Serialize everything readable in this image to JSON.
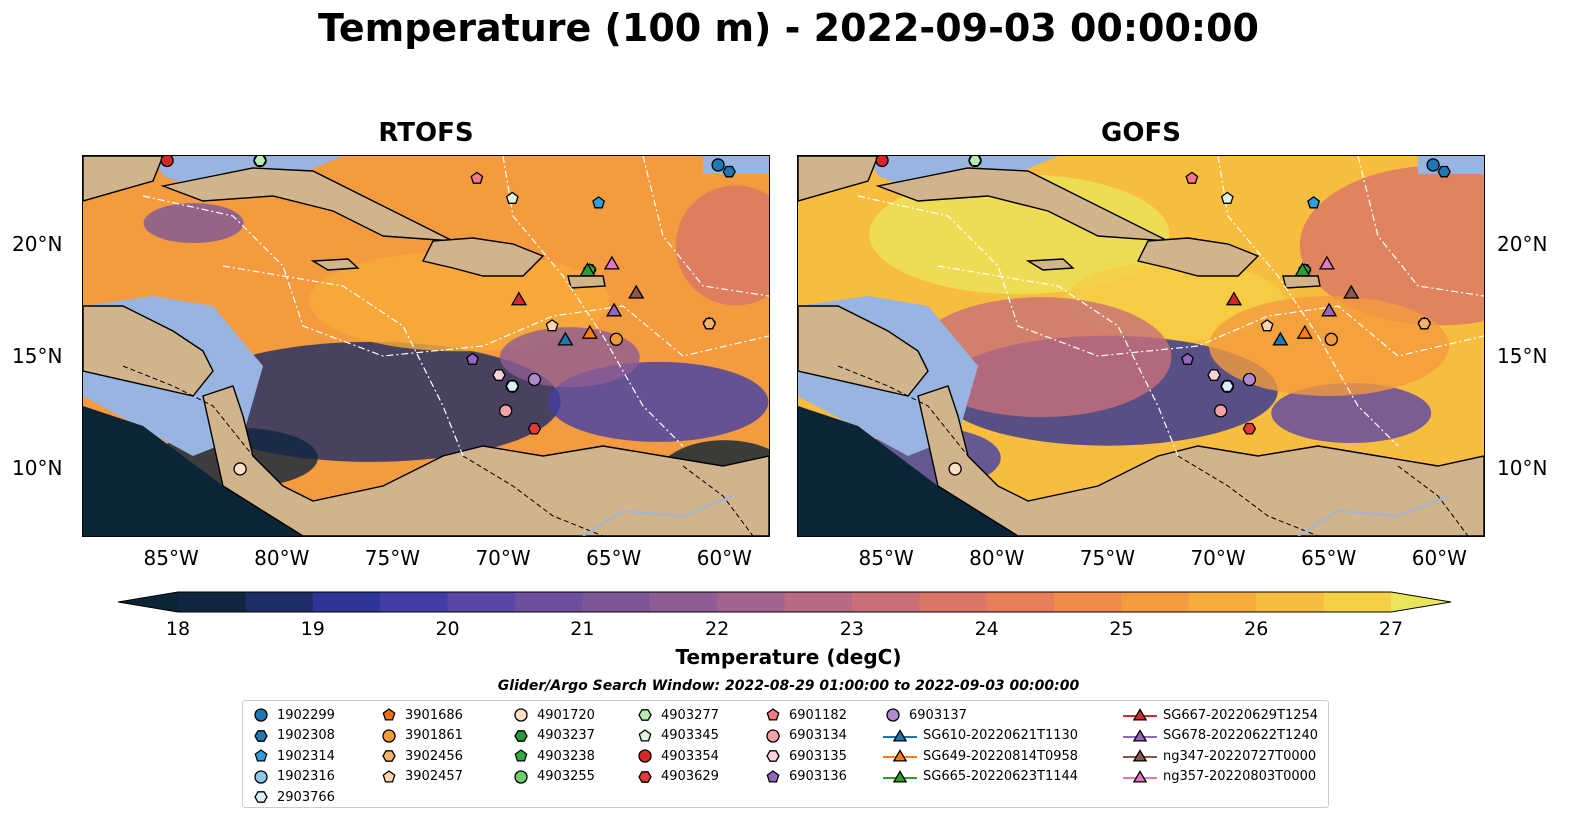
{
  "title": "Temperature (100 m) - 2022-09-03 00:00:00",
  "panels": [
    {
      "title": "RTOFS"
    },
    {
      "title": "GOFS"
    }
  ],
  "colorbar": {
    "label": "Temperature (degC)",
    "ticks": [
      "18",
      "19",
      "20",
      "21",
      "22",
      "23",
      "24",
      "25",
      "26",
      "27"
    ],
    "colors": [
      "#0b2536",
      "#10263f",
      "#1d2c66",
      "#2f3597",
      "#423ea8",
      "#5a46a6",
      "#6c4f9f",
      "#7d5698",
      "#8f5d93",
      "#a2638c",
      "#b66a84",
      "#c86f78",
      "#da7568",
      "#e87e57",
      "#f18c48",
      "#f49b3f",
      "#f6ab3b",
      "#f7bd3e",
      "#f4d045",
      "#ebe55a"
    ]
  },
  "search_window": "Glider/Argo Search Window: 2022-08-29 01:00:00 to 2022-09-03 00:00:00",
  "axes": {
    "lon_ticks": [
      "85°W",
      "80°W",
      "75°W",
      "70°W",
      "65°W",
      "60°W"
    ],
    "lat_ticks": [
      "20°N",
      "15°N",
      "10°N"
    ]
  },
  "chart_data": {
    "type": "heatmap",
    "variable": "Temperature (100 m)",
    "units": "degC",
    "clim": [
      18,
      27
    ],
    "extent": {
      "lon": [
        -89,
        -58
      ],
      "lat": [
        7,
        24
      ]
    },
    "colors": {
      "land": "#d2b48c",
      "shallow": "#98b4e0",
      "deep_cold": "#0b2536"
    },
    "platforms": [
      {
        "name": "1902299",
        "marker": "circle",
        "color": "#1f77b4",
        "lon": -60.3,
        "lat": 23.6
      },
      {
        "name": "1902308",
        "marker": "hexagon",
        "color": "#1f77b4",
        "lon": -59.8,
        "lat": 23.3
      },
      {
        "name": "1902314",
        "marker": "pentagon",
        "color": "#2ca0df",
        "lon": -65.7,
        "lat": 21.9
      },
      {
        "name": "1902316",
        "marker": "circle",
        "color": "#8ec6ea",
        "lon": -69.6,
        "lat": 13.7
      },
      {
        "name": "2903766",
        "marker": "hexagon",
        "color": "#d9effa",
        "lon": -69.6,
        "lat": 13.7
      },
      {
        "name": "3901686",
        "marker": "pentagon",
        "color": "#ec7014",
        "lon": -60.7,
        "lat": 16.5
      },
      {
        "name": "3901861",
        "marker": "circle",
        "color": "#f29a3a",
        "lon": -64.9,
        "lat": 15.8
      },
      {
        "name": "3902456",
        "marker": "hexagon",
        "color": "#f4b26a",
        "lon": -60.7,
        "lat": 16.5
      },
      {
        "name": "3902457",
        "marker": "pentagon",
        "color": "#fbd5ad",
        "lon": -67.8,
        "lat": 16.4
      },
      {
        "name": "4901720",
        "marker": "circle",
        "color": "#fde1c4",
        "lon": -81.9,
        "lat": 10.0
      },
      {
        "name": "4903237",
        "marker": "hexagon",
        "color": "#2a9a3a",
        "lon": -66.1,
        "lat": 18.9
      },
      {
        "name": "4903238",
        "marker": "pentagon",
        "color": "#2fae3f",
        "lon": -66.1,
        "lat": 18.9
      },
      {
        "name": "4903255",
        "marker": "circle",
        "color": "#6ccf6a",
        "lon": -81.0,
        "lat": 23.8
      },
      {
        "name": "4903277",
        "marker": "hexagon",
        "color": "#b7ecb0",
        "lon": -81.0,
        "lat": 23.8
      },
      {
        "name": "4903345",
        "marker": "pentagon",
        "color": "#dff5d8",
        "lon": -69.6,
        "lat": 22.1
      },
      {
        "name": "4903354",
        "marker": "circle",
        "color": "#d62728",
        "lon": -85.2,
        "lat": 23.8
      },
      {
        "name": "4903629",
        "marker": "hexagon",
        "color": "#e03a3a",
        "lon": -68.6,
        "lat": 11.8
      },
      {
        "name": "6901182",
        "marker": "pentagon",
        "color": "#f07b84",
        "lon": -71.2,
        "lat": 23.0
      },
      {
        "name": "6903134",
        "marker": "circle",
        "color": "#f6a3a8",
        "lon": -69.9,
        "lat": 12.6
      },
      {
        "name": "6903135",
        "marker": "hexagon",
        "color": "#fbd3d7",
        "lon": -70.2,
        "lat": 14.2
      },
      {
        "name": "6903136",
        "marker": "pentagon",
        "color": "#9467bd",
        "lon": -71.4,
        "lat": 14.9
      },
      {
        "name": "6903137",
        "marker": "circle",
        "color": "#b08ad0",
        "lon": -68.6,
        "lat": 14.0
      },
      {
        "name": "SG610-20220621T1130",
        "marker": "triangle",
        "color": "#1f77b4",
        "lon": -67.2,
        "lat": 15.8
      },
      {
        "name": "SG649-20220814T0958",
        "marker": "triangle",
        "color": "#ff7f0e",
        "lon": -66.1,
        "lat": 16.1
      },
      {
        "name": "SG665-20220623T1144",
        "marker": "triangle",
        "color": "#2ca02c",
        "lon": -66.2,
        "lat": 18.9
      },
      {
        "name": "SG667-20220629T1254",
        "marker": "triangle",
        "color": "#d62728",
        "lon": -69.3,
        "lat": 17.6
      },
      {
        "name": "SG678-20220622T1240",
        "marker": "triangle",
        "color": "#9467bd",
        "lon": -65.0,
        "lat": 17.1
      },
      {
        "name": "ng347-20220727T0000",
        "marker": "triangle",
        "color": "#8c564b",
        "lon": -64.0,
        "lat": 17.9
      },
      {
        "name": "ng357-20220803T0000",
        "marker": "triangle",
        "color": "#e377c2",
        "lon": -65.1,
        "lat": 19.2
      }
    ]
  }
}
